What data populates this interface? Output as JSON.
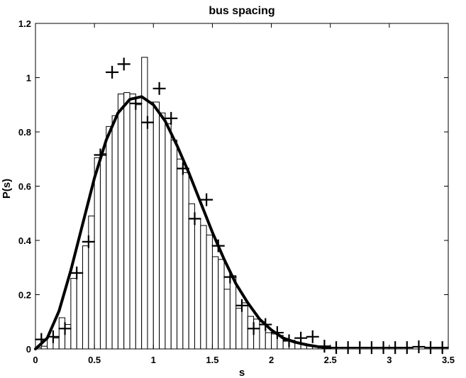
{
  "chart_data": {
    "type": "bar",
    "title": "bus spacing",
    "xlabel": "s",
    "ylabel": "P(s)",
    "xlim": [
      0,
      3.5
    ],
    "ylim": [
      0,
      1.2
    ],
    "xticks": [
      0,
      0.5,
      1,
      1.5,
      2,
      2.5,
      3,
      3.5
    ],
    "xtick_labels": [
      "0",
      "0.5",
      "1",
      "1.5",
      "2",
      "2.5",
      "3",
      "3.5"
    ],
    "yticks": [
      0,
      0.2,
      0.4,
      0.6,
      0.8,
      1.0,
      1.2
    ],
    "ytick_labels": [
      "0",
      "0.2",
      "0.4",
      "0.6",
      "0.8",
      "1",
      "1.2"
    ],
    "grid": false,
    "legend": "none",
    "histogram": {
      "bin_width": 0.05,
      "x": [
        0.025,
        0.075,
        0.125,
        0.175,
        0.225,
        0.275,
        0.325,
        0.375,
        0.425,
        0.475,
        0.525,
        0.575,
        0.625,
        0.675,
        0.725,
        0.775,
        0.825,
        0.875,
        0.925,
        0.975,
        1.025,
        1.075,
        1.125,
        1.175,
        1.225,
        1.275,
        1.325,
        1.375,
        1.425,
        1.475,
        1.525,
        1.575,
        1.625,
        1.675,
        1.725,
        1.775,
        1.825,
        1.875,
        1.925,
        1.975,
        2.025,
        2.075,
        2.125,
        2.175,
        2.225,
        2.275,
        2.325,
        2.375,
        2.425,
        2.475
      ],
      "values": [
        0.005,
        0.01,
        0.045,
        0.04,
        0.115,
        0.09,
        0.26,
        0.28,
        0.38,
        0.49,
        0.705,
        0.72,
        0.82,
        0.86,
        0.94,
        0.945,
        0.94,
        0.9,
        1.075,
        0.91,
        0.91,
        0.87,
        0.83,
        0.77,
        0.7,
        0.65,
        0.535,
        0.48,
        0.455,
        0.42,
        0.34,
        0.33,
        0.22,
        0.27,
        0.15,
        0.17,
        0.12,
        0.11,
        0.1,
        0.06,
        0.055,
        0.05,
        0.035,
        0.03,
        0.025,
        0.02,
        0.015,
        0.01,
        0.008,
        0.006
      ]
    },
    "markers": {
      "style": "plus",
      "x": [
        0.05,
        0.15,
        0.25,
        0.35,
        0.45,
        0.55,
        0.65,
        0.75,
        0.85,
        0.95,
        1.05,
        1.15,
        1.25,
        1.35,
        1.45,
        1.55,
        1.65,
        1.75,
        1.85,
        1.95,
        2.05,
        2.15,
        2.25,
        2.35,
        2.45,
        2.55,
        2.65,
        2.75,
        2.85,
        2.95,
        3.05,
        3.15,
        3.25,
        3.35,
        3.45
      ],
      "y": [
        0.035,
        0.045,
        0.075,
        0.28,
        0.395,
        0.715,
        1.02,
        1.05,
        0.905,
        0.835,
        0.96,
        0.85,
        0.665,
        0.48,
        0.55,
        0.38,
        0.265,
        0.16,
        0.075,
        0.09,
        0.06,
        0.03,
        0.04,
        0.045,
        0.01,
        0.005,
        0.005,
        0.005,
        0.005,
        0.005,
        0.005,
        0.005,
        0.008,
        0.005,
        0.005
      ]
    },
    "curve": {
      "x": [
        0.0,
        0.1,
        0.2,
        0.3,
        0.4,
        0.5,
        0.6,
        0.7,
        0.8,
        0.9,
        1.0,
        1.1,
        1.2,
        1.3,
        1.4,
        1.5,
        1.6,
        1.7,
        1.8,
        1.9,
        2.0,
        2.1,
        2.2,
        2.3,
        2.4,
        2.5
      ],
      "y": [
        0.0,
        0.04,
        0.14,
        0.29,
        0.46,
        0.63,
        0.77,
        0.87,
        0.92,
        0.93,
        0.9,
        0.84,
        0.75,
        0.65,
        0.54,
        0.43,
        0.33,
        0.24,
        0.17,
        0.11,
        0.07,
        0.04,
        0.025,
        0.015,
        0.008,
        0.004
      ]
    }
  }
}
